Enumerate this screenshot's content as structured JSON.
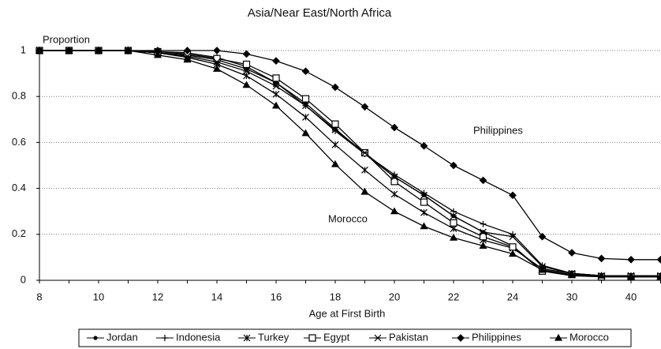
{
  "chart_data": {
    "type": "line",
    "title": "Asia/Near East/North Africa",
    "y_label": "Proportion",
    "x_label": "Age at First Birth",
    "categories": [
      8,
      null,
      10,
      null,
      12,
      null,
      14,
      null,
      16,
      null,
      18,
      null,
      20,
      null,
      22,
      null,
      24,
      null,
      30,
      null,
      40,
      null
    ],
    "ylim": [
      0,
      1
    ],
    "yticks": [
      0,
      0.2,
      0.4,
      0.6,
      0.8,
      1
    ],
    "grid": true,
    "legend": "bottom",
    "annotations": [
      "Philippines",
      "Morocco"
    ],
    "series": [
      {
        "name": "Jordan",
        "color": "#000000",
        "marker": "dot",
        "values": [
          1,
          1,
          1,
          1,
          0.99,
          0.98,
          0.96,
          0.92,
          0.86,
          0.77,
          0.66,
          0.55,
          0.45,
          0.37,
          0.28,
          0.21,
          0.15,
          0.04,
          0.02,
          0.015,
          0.015,
          0.015
        ]
      },
      {
        "name": "Indonesia",
        "color": "#000000",
        "marker": "plus",
        "values": [
          1,
          1,
          1,
          1,
          0.995,
          0.99,
          0.97,
          0.93,
          0.86,
          0.76,
          0.65,
          0.55,
          0.46,
          0.38,
          0.3,
          0.245,
          0.2,
          0.065,
          0.03,
          0.02,
          0.02,
          0.02
        ]
      },
      {
        "name": "Turkey",
        "color": "#000000",
        "marker": "asterisk",
        "values": [
          1,
          1,
          1,
          1,
          0.99,
          0.97,
          0.94,
          0.89,
          0.81,
          0.71,
          0.59,
          0.48,
          0.375,
          0.295,
          0.225,
          0.175,
          0.14,
          0.05,
          0.03,
          0.02,
          0.02,
          0.02
        ]
      },
      {
        "name": "Egypt",
        "color": "#000000",
        "marker": "square",
        "values": [
          1,
          1,
          1,
          1,
          0.995,
          0.985,
          0.965,
          0.94,
          0.88,
          0.79,
          0.68,
          0.555,
          0.43,
          0.34,
          0.25,
          0.19,
          0.145,
          0.04,
          0.025,
          0.015,
          0.015,
          0.015
        ]
      },
      {
        "name": "Pakistan",
        "color": "#000000",
        "marker": "cross",
        "values": [
          1,
          1,
          1,
          1,
          0.99,
          0.975,
          0.95,
          0.91,
          0.845,
          0.76,
          0.655,
          0.555,
          0.45,
          0.37,
          0.28,
          0.21,
          0.19,
          0.06,
          0.03,
          0.02,
          0.02,
          0.02
        ]
      },
      {
        "name": "Philippines",
        "color": "#000000",
        "marker": "diamond",
        "values": [
          1,
          1,
          1,
          1,
          1,
          1,
          1,
          0.985,
          0.955,
          0.91,
          0.84,
          0.755,
          0.665,
          0.585,
          0.5,
          0.435,
          0.37,
          0.19,
          0.12,
          0.095,
          0.09,
          0.09
        ]
      },
      {
        "name": "Morocco",
        "color": "#000000",
        "marker": "triangle",
        "values": [
          1,
          1,
          1,
          1,
          0.98,
          0.96,
          0.92,
          0.85,
          0.76,
          0.64,
          0.505,
          0.385,
          0.3,
          0.235,
          0.185,
          0.15,
          0.115,
          0.045,
          0.025,
          0.02,
          0.015,
          0.015
        ]
      }
    ]
  }
}
